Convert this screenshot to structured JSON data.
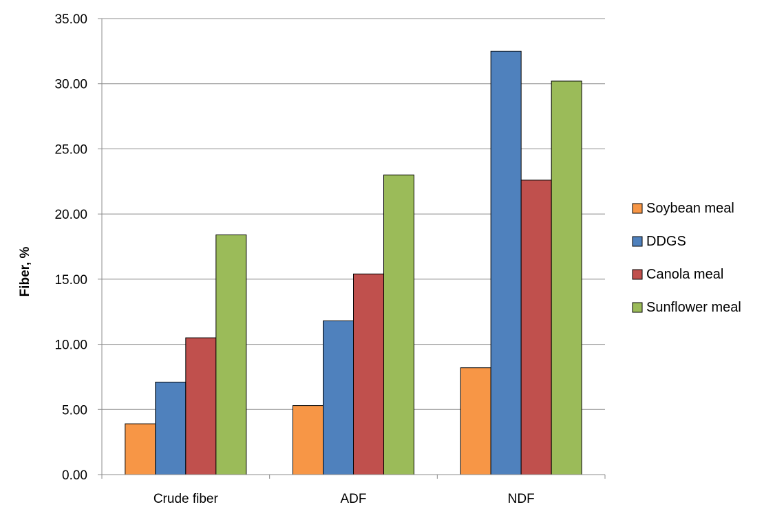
{
  "chart_data": {
    "type": "bar",
    "title": "",
    "xlabel": "",
    "ylabel": "Fiber, %",
    "ylim": [
      0,
      35
    ],
    "yticks": [
      "0.00",
      "5.00",
      "10.00",
      "15.00",
      "20.00",
      "25.00",
      "30.00",
      "35.00"
    ],
    "categories": [
      "Crude fiber",
      "ADF",
      "NDF"
    ],
    "series": [
      {
        "name": "Soybean meal",
        "color": "#F79646",
        "values": [
          3.9,
          5.3,
          8.2
        ]
      },
      {
        "name": "DDGS",
        "color": "#4F81BD",
        "values": [
          7.1,
          11.8,
          32.5
        ]
      },
      {
        "name": "Canola meal",
        "color": "#C0504D",
        "values": [
          10.5,
          15.4,
          22.6
        ]
      },
      {
        "name": "Sunflower meal",
        "color": "#9BBB59",
        "values": [
          18.4,
          23.0,
          30.2
        ]
      }
    ],
    "grid": true,
    "legend_position": "right"
  }
}
